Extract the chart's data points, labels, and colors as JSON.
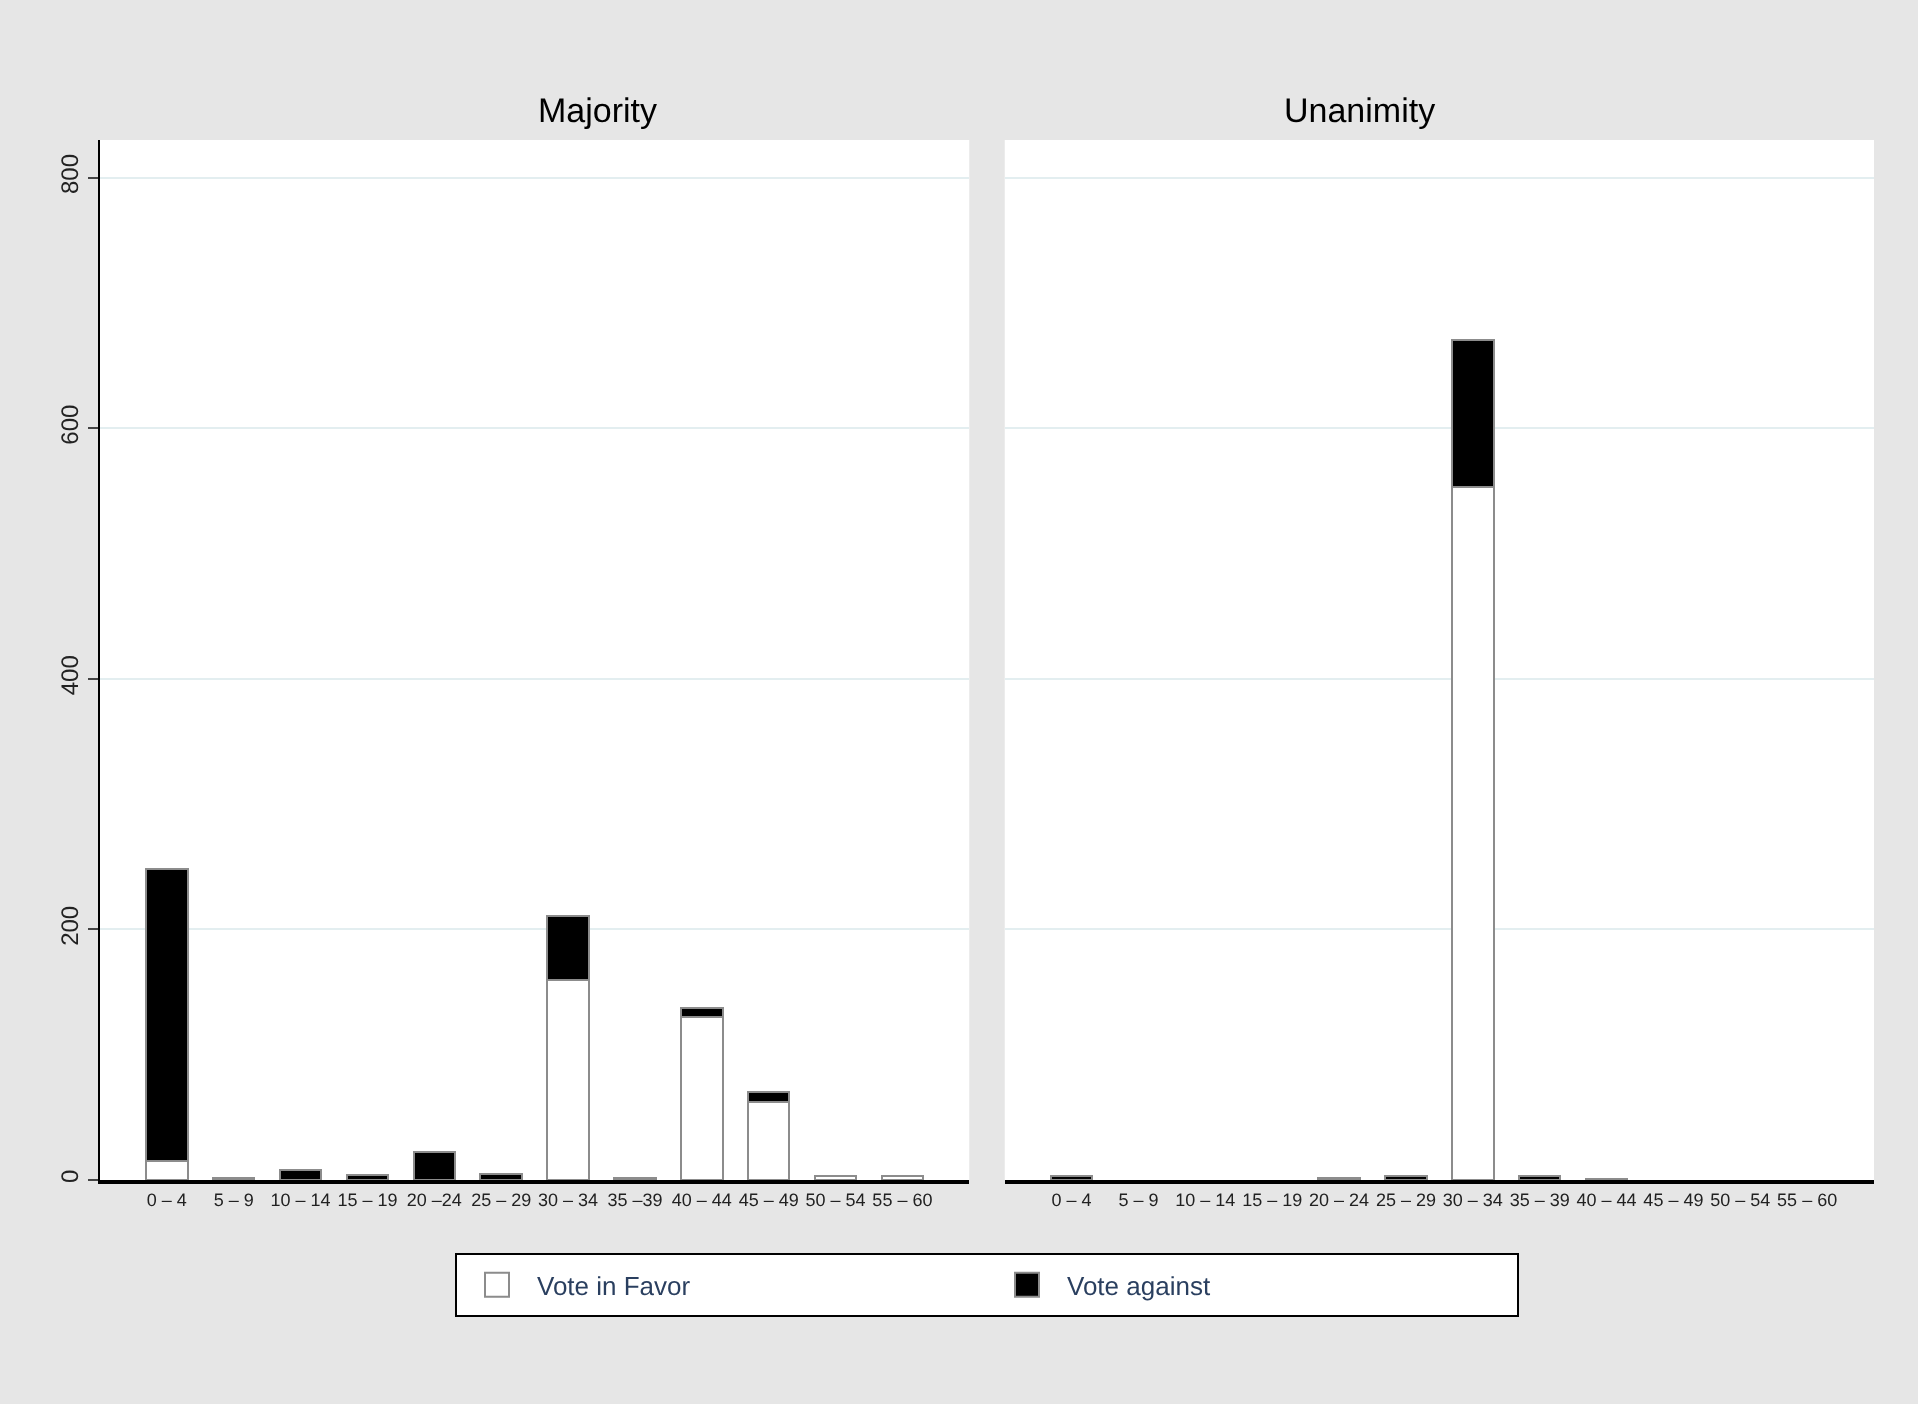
{
  "chart_data": [
    {
      "type": "bar",
      "stacked": true,
      "title": "Majority",
      "categories": [
        "0 – 4",
        "5 – 9",
        "10 – 14",
        "15 – 19",
        "20 –24",
        "25 – 29",
        "30 – 34",
        "35 –39",
        "40 – 44",
        "45 – 49",
        "50 – 54",
        "55 – 60"
      ],
      "series": [
        {
          "name": "Vote in Favor",
          "color": "#ffffff",
          "values": [
            15,
            0,
            0,
            0,
            0,
            0,
            160,
            2,
            130,
            62,
            3,
            3
          ]
        },
        {
          "name": "Vote against",
          "color": "#000000",
          "values": [
            233,
            2,
            8,
            4,
            22,
            5,
            51,
            0,
            7,
            8,
            0,
            0
          ]
        }
      ],
      "ylim": [
        0,
        830
      ],
      "yticks": [
        0,
        200,
        400,
        600,
        800
      ],
      "grid": "y",
      "legend": "bottom"
    },
    {
      "type": "bar",
      "stacked": true,
      "title": "Unanimity",
      "categories": [
        "0 – 4",
        "5 – 9",
        "10 – 14",
        "15 – 19",
        "20 – 24",
        "25 – 29",
        "30 – 34",
        "35 – 39",
        "40 – 44",
        "45 – 49",
        "50 – 54",
        "55 – 60"
      ],
      "series": [
        {
          "color": "#ffffff",
          "values": [
            0,
            0,
            0,
            0,
            0,
            0,
            553,
            0,
            0,
            0,
            0,
            0
          ]
        },
        {
          "color": "#000000",
          "values": [
            3,
            0,
            0,
            0,
            2,
            3,
            117,
            3,
            1,
            0,
            0,
            0
          ]
        }
      ],
      "ylim": [
        0,
        830
      ],
      "yticks": [
        0,
        200,
        400,
        600,
        800
      ],
      "grid": "y",
      "tick_labels": "x"
    }
  ]
}
